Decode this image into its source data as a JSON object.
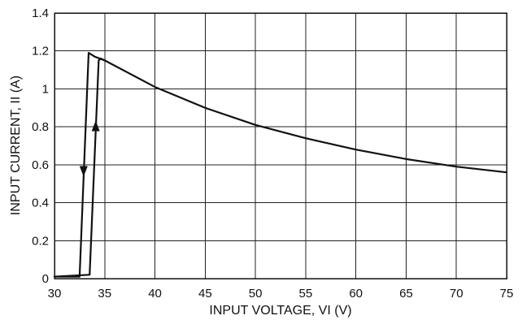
{
  "chart_data": {
    "type": "line",
    "xlabel": "INPUT VOLTAGE, VI (V)",
    "ylabel": "INPUT CURRENT, II (A)",
    "xlim": [
      30,
      75
    ],
    "ylim": [
      0,
      1.4
    ],
    "x_ticks": [
      "30",
      "35",
      "40",
      "45",
      "50",
      "55",
      "60",
      "65",
      "70",
      "75"
    ],
    "y_ticks": [
      "0",
      "0.2",
      "0.4",
      "0.6",
      "0.8",
      "1",
      "1.2",
      "1.4"
    ],
    "grid": true,
    "series": [
      {
        "x": [
          30.0,
          32.5,
          33.4,
          34.0,
          34.5,
          35.0,
          40.0,
          45.0,
          50.0,
          55.0,
          60.0,
          65.0,
          70.0,
          75.0
        ],
        "y": [
          0.01,
          0.01,
          1.19,
          1.17,
          1.16,
          1.15,
          1.01,
          0.9,
          0.81,
          0.74,
          0.68,
          0.63,
          0.59,
          0.56
        ]
      },
      {
        "x": [
          30.0,
          33.5,
          34.4,
          34.6,
          35.0
        ],
        "y": [
          0.01,
          0.02,
          1.15,
          1.16,
          1.15
        ]
      }
    ],
    "annotations": [
      {
        "type": "arrow",
        "direction": "down",
        "x": 32.9,
        "y": 0.55
      },
      {
        "type": "arrow",
        "direction": "up",
        "x": 34.1,
        "y": 0.82
      }
    ]
  }
}
